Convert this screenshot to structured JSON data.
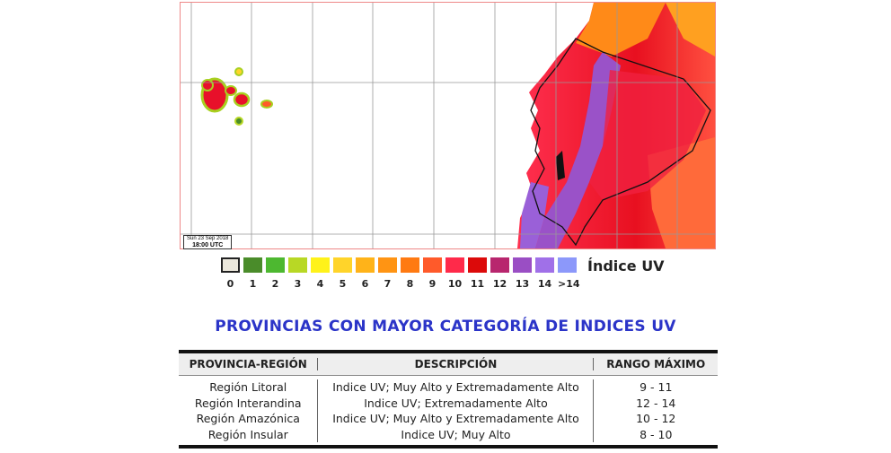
{
  "map": {
    "timestamp_line1": "Sun 23 Sep 2018",
    "timestamp_line2": "18:00 UTC"
  },
  "legend": {
    "title": "Índice UV",
    "items": [
      {
        "label": "0",
        "color": "#ece8dc"
      },
      {
        "label": "1",
        "color": "#4a8c2a"
      },
      {
        "label": "2",
        "color": "#4db830"
      },
      {
        "label": "3",
        "color": "#b8d825"
      },
      {
        "label": "4",
        "color": "#fff21a"
      },
      {
        "label": "5",
        "color": "#ffd42a"
      },
      {
        "label": "6",
        "color": "#ffb319"
      },
      {
        "label": "7",
        "color": "#ff9413"
      },
      {
        "label": "8",
        "color": "#ff7a12"
      },
      {
        "label": "9",
        "color": "#ff5a2a"
      },
      {
        "label": "10",
        "color": "#ff2a4a"
      },
      {
        "label": "11",
        "color": "#dc0a0a"
      },
      {
        "label": "12",
        "color": "#b8266e"
      },
      {
        "label": "13",
        "color": "#9a4ec4"
      },
      {
        "label": "14",
        "color": "#a070e8"
      },
      {
        "label": ">14",
        "color": "#8c98fa"
      }
    ]
  },
  "section_title": "PROVINCIAS CON MAYOR CATEGORÍA DE INDICES UV",
  "table": {
    "headers": [
      "PROVINCIA-REGIÓN",
      "DESCRIPCIÓN",
      "RANGO MÁXIMO"
    ],
    "rows": [
      [
        "Región Litoral",
        "Indice UV; Muy Alto y Extremadamente Alto",
        "9 - 11"
      ],
      [
        "Región Interandina",
        "Indice UV; Extremadamente Alto",
        "12 - 14"
      ],
      [
        "Región Amazónica",
        "Indice UV; Muy Alto y Extremadamente Alto",
        "10 - 12"
      ],
      [
        "Región Insular",
        "Indice UV; Muy Alto",
        "8 - 10"
      ]
    ]
  }
}
